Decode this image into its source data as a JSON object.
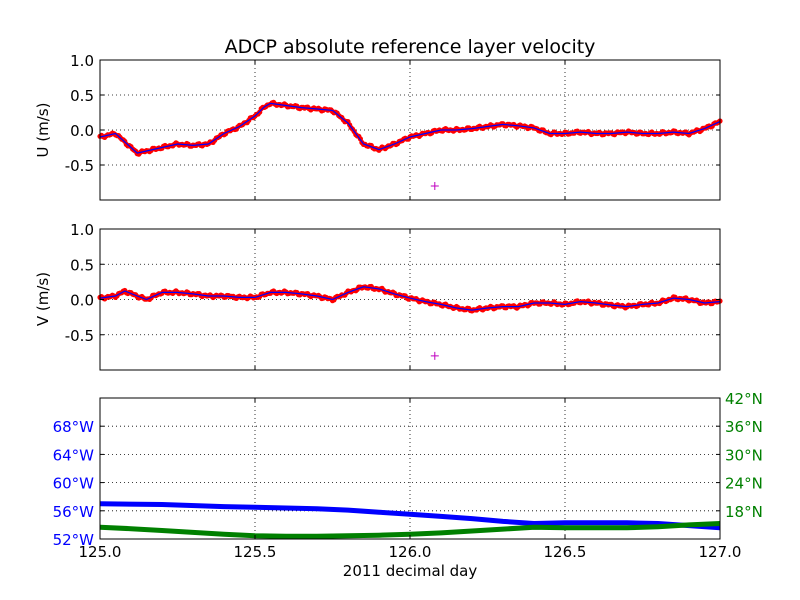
{
  "chart_data": [
    {
      "type": "line",
      "title": "ADCP absolute reference layer velocity",
      "ylabel": "U (m/s)",
      "xlim": [
        125.0,
        127.0
      ],
      "ylim": [
        -1.0,
        1.0
      ],
      "yticks": [
        "1.0",
        "0.5",
        "0.0",
        "-0.5"
      ],
      "ytick_values": [
        1.0,
        0.5,
        0.0,
        -0.5
      ],
      "xtick_values": [
        125.0,
        125.5,
        126.0,
        126.5,
        127.0
      ],
      "grid": true,
      "series": [
        {
          "x": [
            125.0,
            125.05,
            125.1,
            125.12,
            125.15,
            125.2,
            125.25,
            125.3,
            125.35,
            125.4,
            125.45,
            125.5,
            125.53,
            125.55,
            125.6,
            125.65,
            125.7,
            125.75,
            125.8,
            125.85,
            125.9,
            125.95,
            126.0,
            126.05,
            126.1,
            126.15,
            126.2,
            126.25,
            126.3,
            126.35,
            126.4,
            126.45,
            126.5,
            126.55,
            126.6,
            126.65,
            126.7,
            126.75,
            126.8,
            126.85,
            126.9,
            126.95,
            127.0
          ],
          "values": [
            -0.1,
            -0.05,
            -0.25,
            -0.33,
            -0.3,
            -0.25,
            -0.2,
            -0.22,
            -0.2,
            -0.05,
            0.05,
            0.2,
            0.33,
            0.38,
            0.35,
            0.32,
            0.3,
            0.28,
            0.1,
            -0.2,
            -0.28,
            -0.2,
            -0.1,
            -0.05,
            0.0,
            0.0,
            0.02,
            0.05,
            0.08,
            0.06,
            0.03,
            -0.05,
            -0.05,
            -0.03,
            -0.05,
            -0.05,
            -0.03,
            -0.05,
            -0.05,
            -0.03,
            -0.05,
            0.02,
            0.12
          ],
          "color": "#ff0000",
          "line_color": "#0000ff"
        },
        {
          "x": [
            126.08
          ],
          "values": [
            -0.8
          ],
          "marker": "+",
          "color": "#bf00bf"
        }
      ]
    },
    {
      "type": "line",
      "ylabel": "V (m/s)",
      "xlim": [
        125.0,
        127.0
      ],
      "ylim": [
        -1.0,
        1.0
      ],
      "yticks": [
        "1.0",
        "0.5",
        "0.0",
        "-0.5"
      ],
      "ytick_values": [
        1.0,
        0.5,
        0.0,
        -0.5
      ],
      "xtick_values": [
        125.0,
        125.5,
        126.0,
        126.5,
        127.0
      ],
      "grid": true,
      "series": [
        {
          "x": [
            125.0,
            125.05,
            125.08,
            125.12,
            125.15,
            125.2,
            125.25,
            125.3,
            125.35,
            125.4,
            125.45,
            125.5,
            125.55,
            125.6,
            125.65,
            125.7,
            125.75,
            125.8,
            125.85,
            125.9,
            125.95,
            126.0,
            126.05,
            126.1,
            126.15,
            126.2,
            126.25,
            126.3,
            126.35,
            126.4,
            126.45,
            126.5,
            126.55,
            126.6,
            126.65,
            126.7,
            126.75,
            126.8,
            126.85,
            126.9,
            126.95,
            127.0
          ],
          "values": [
            0.02,
            0.05,
            0.12,
            0.05,
            0.0,
            0.1,
            0.1,
            0.08,
            0.05,
            0.05,
            0.03,
            0.03,
            0.1,
            0.1,
            0.08,
            0.05,
            0.0,
            0.1,
            0.18,
            0.15,
            0.08,
            0.02,
            -0.03,
            -0.07,
            -0.12,
            -0.15,
            -0.12,
            -0.1,
            -0.1,
            -0.05,
            -0.05,
            -0.07,
            -0.03,
            -0.05,
            -0.08,
            -0.1,
            -0.07,
            -0.05,
            0.02,
            0.0,
            -0.05,
            -0.03
          ],
          "color": "#ff0000",
          "line_color": "#0000ff"
        },
        {
          "x": [
            126.08
          ],
          "values": [
            -0.8
          ],
          "marker": "+",
          "color": "#bf00bf"
        }
      ]
    },
    {
      "type": "line",
      "xlabel": "2011 decimal day",
      "xlim": [
        125.0,
        127.0
      ],
      "xticks": [
        "125.0",
        "125.5",
        "126.0",
        "126.5",
        "127.0"
      ],
      "xtick_values": [
        125.0,
        125.5,
        126.0,
        126.5,
        127.0
      ],
      "ylim_left_lon": [
        -52,
        -72
      ],
      "yticks_left": [
        "52°W",
        "56°W",
        "60°W",
        "64°W",
        "68°W"
      ],
      "ytick_left_values": [
        -52,
        -56,
        -60,
        -64,
        -68
      ],
      "ylim_right_lat": [
        12,
        42
      ],
      "yticks_right": [
        "42°N",
        "36°N",
        "30°N",
        "24°N",
        "18°N"
      ],
      "ytick_right_values": [
        42,
        36,
        30,
        24,
        18
      ],
      "left_color": "#0000ff",
      "right_color": "#008000",
      "grid": true,
      "series": [
        {
          "axis": "left",
          "x": [
            125.0,
            125.2,
            125.4,
            125.5,
            125.6,
            125.7,
            125.8,
            125.9,
            126.0,
            126.1,
            126.2,
            126.3,
            126.4,
            126.5,
            126.6,
            126.7,
            126.8,
            126.9,
            127.0
          ],
          "values": [
            -57.0,
            -56.9,
            -56.6,
            -56.5,
            -56.4,
            -56.3,
            -56.1,
            -55.8,
            -55.5,
            -55.2,
            -54.9,
            -54.5,
            -54.2,
            -54.3,
            -54.3,
            -54.3,
            -54.2,
            -53.9,
            -53.6
          ],
          "color": "#0000ff"
        },
        {
          "axis": "right",
          "x": [
            125.0,
            125.1,
            125.2,
            125.3,
            125.4,
            125.5,
            125.6,
            125.7,
            125.8,
            125.9,
            126.0,
            126.1,
            126.2,
            126.3,
            126.4,
            126.5,
            126.6,
            126.7,
            126.8,
            126.9,
            127.0
          ],
          "values": [
            14.5,
            14.2,
            13.8,
            13.4,
            13.0,
            12.7,
            12.6,
            12.6,
            12.7,
            12.8,
            13.0,
            13.3,
            13.7,
            14.1,
            14.5,
            14.4,
            14.4,
            14.4,
            14.6,
            15.0,
            15.3
          ],
          "color": "#008000"
        }
      ]
    }
  ]
}
